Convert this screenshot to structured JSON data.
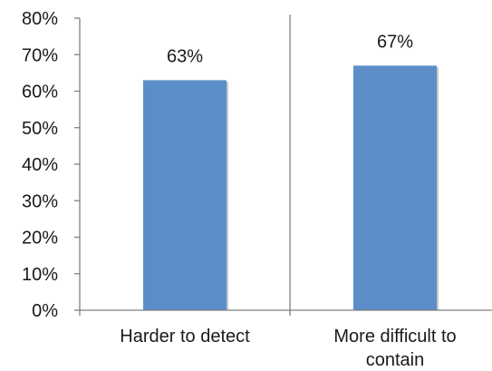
{
  "chart_data": {
    "type": "bar",
    "categories": [
      "Harder to detect",
      "More difficult to contain"
    ],
    "category_label_lines": [
      [
        "Harder to detect"
      ],
      [
        "More difficult to",
        "contain"
      ]
    ],
    "values": [
      63,
      67
    ],
    "data_labels": [
      "63%",
      "67%"
    ],
    "title": "",
    "xlabel": "",
    "ylabel": "",
    "ylim": [
      0,
      80
    ],
    "y_ticks": [
      "0%",
      "10%",
      "20%",
      "30%",
      "40%",
      "50%",
      "60%",
      "70%",
      "80%"
    ],
    "grid": false,
    "legend": "none",
    "colors": {
      "bar": "#5b8ec9",
      "bar_shadow": "#c7c7c7",
      "axis": "#808080",
      "text": "#1a1a1a"
    }
  }
}
